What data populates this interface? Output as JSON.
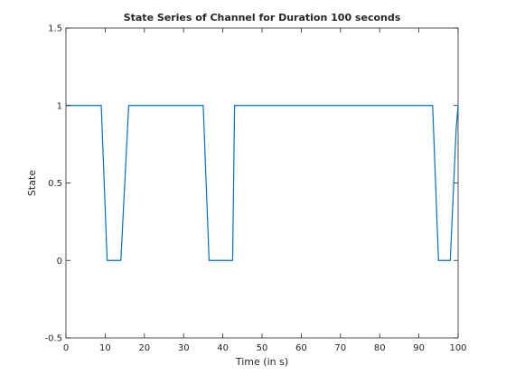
{
  "chart_data": {
    "type": "line",
    "title": "State Series of Channel for Duration 100 seconds",
    "xlabel": "Time (in s)",
    "ylabel": "State",
    "xlim": [
      0,
      100
    ],
    "ylim": [
      -0.5,
      1.5
    ],
    "xticks": [
      0,
      10,
      20,
      30,
      40,
      50,
      60,
      70,
      80,
      90,
      100
    ],
    "yticks": [
      -0.5,
      0,
      0.5,
      1,
      1.5
    ],
    "xtick_labels": [
      "0",
      "10",
      "20",
      "30",
      "40",
      "50",
      "60",
      "70",
      "80",
      "90",
      "100"
    ],
    "ytick_labels": [
      "-0.5",
      "0",
      "0.5",
      "1",
      "1.5"
    ],
    "grid": false,
    "series": [
      {
        "color": "#0072bd",
        "x": [
          0,
          9,
          10.5,
          14,
          16,
          35,
          36.5,
          42.5,
          43,
          93.5,
          95,
          98,
          99.5,
          100
        ],
        "y": [
          1,
          1,
          0,
          0,
          1,
          1,
          0,
          0,
          1,
          1,
          0,
          0,
          0.85,
          1
        ]
      }
    ]
  }
}
